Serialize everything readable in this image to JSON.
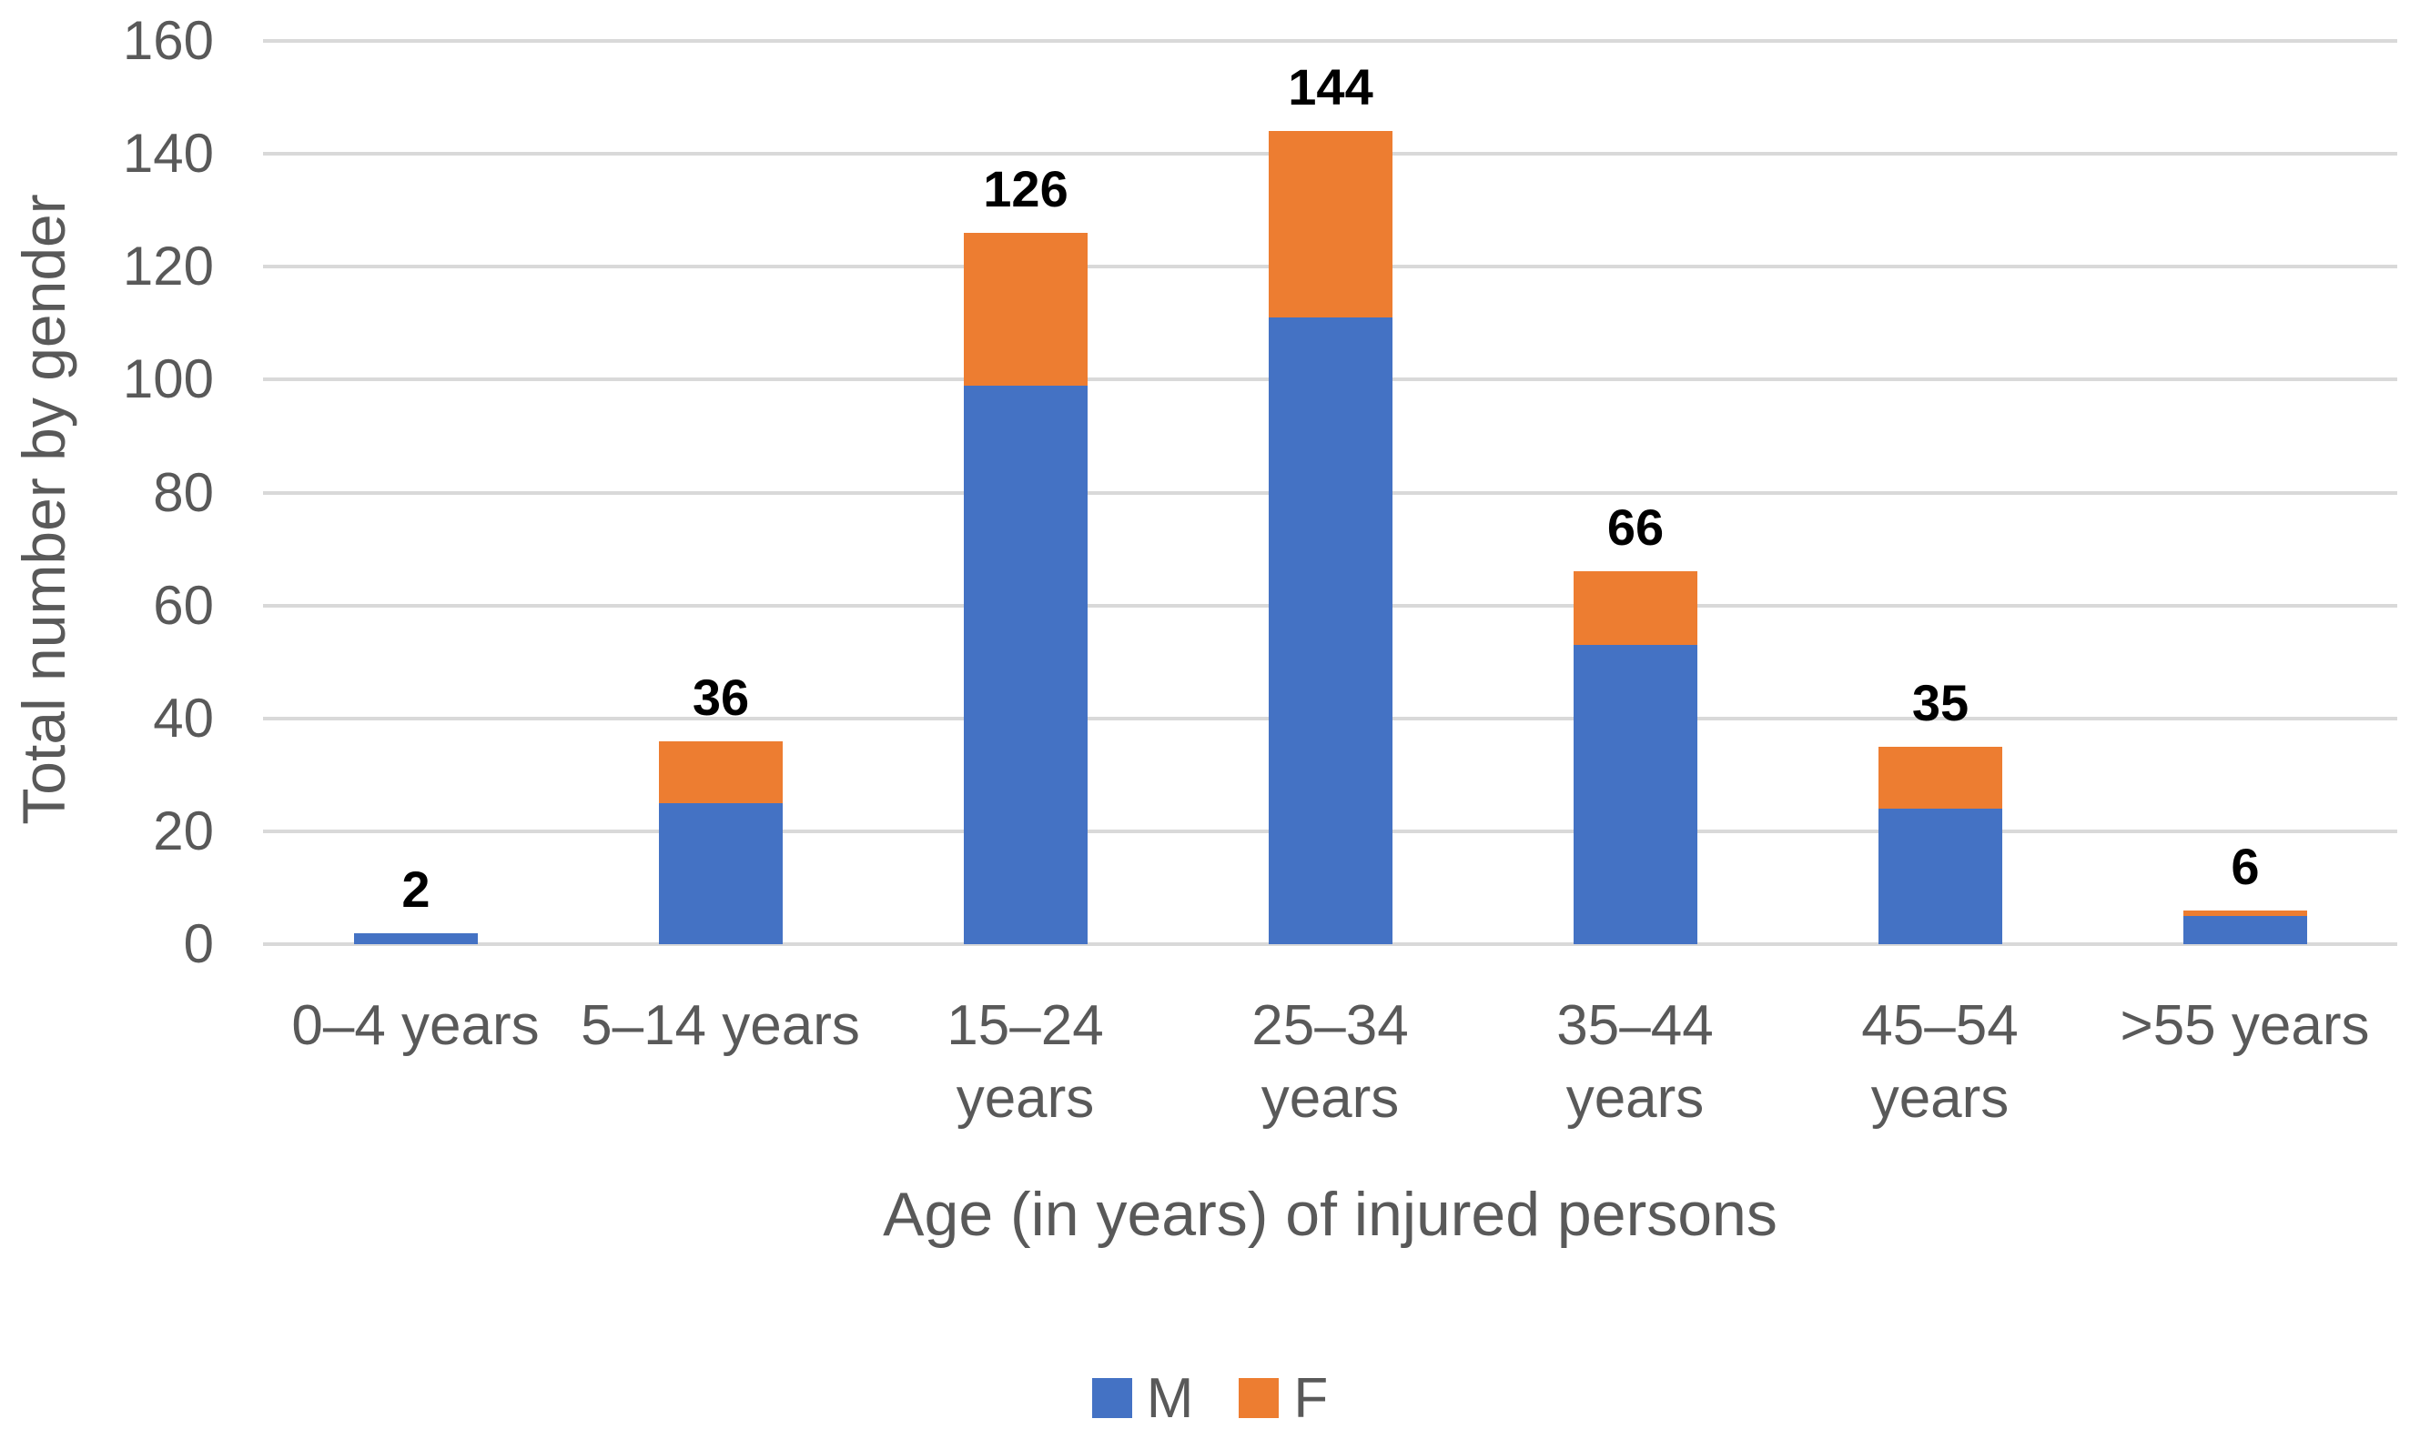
{
  "chart_data": {
    "type": "bar",
    "stacked": true,
    "title": "",
    "categories": [
      "0–4 years",
      "5–14 years",
      "15–24\nyears",
      "25–34\nyears",
      "35–44\nyears",
      "45–54\nyears",
      ">55 years"
    ],
    "series": [
      {
        "name": "M",
        "color": "#4472C4",
        "values": [
          2,
          25,
          99,
          111,
          53,
          24,
          5
        ]
      },
      {
        "name": "F",
        "color": "#ED7D31",
        "values": [
          0,
          11,
          27,
          33,
          13,
          11,
          1
        ]
      }
    ],
    "totals": [
      "2",
      "36",
      "126",
      "144",
      "66",
      "35",
      "6"
    ],
    "xlabel": "Age (in years) of injured persons",
    "ylabel": "Total number by gender",
    "ylim": [
      0,
      160
    ],
    "yticks": [
      0,
      20,
      40,
      60,
      80,
      100,
      120,
      140,
      160
    ],
    "grid": true,
    "legend_position": "bottom",
    "gridline_color": "#D9D9D9",
    "axis_text_color": "#595959",
    "data_label_color": "#000000"
  }
}
